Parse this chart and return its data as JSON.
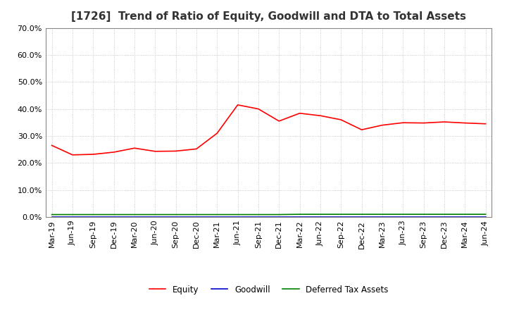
{
  "title": "[1726]  Trend of Ratio of Equity, Goodwill and DTA to Total Assets",
  "x_labels": [
    "Mar-19",
    "Jun-19",
    "Sep-19",
    "Dec-19",
    "Mar-20",
    "Jun-20",
    "Sep-20",
    "Dec-20",
    "Mar-21",
    "Jun-21",
    "Sep-21",
    "Dec-21",
    "Mar-22",
    "Jun-22",
    "Sep-22",
    "Dec-22",
    "Mar-23",
    "Jun-23",
    "Sep-23",
    "Dec-23",
    "Mar-24",
    "Jun-24"
  ],
  "equity": [
    0.265,
    0.23,
    0.232,
    0.24,
    0.255,
    0.243,
    0.244,
    0.252,
    0.31,
    0.415,
    0.4,
    0.355,
    0.384,
    0.375,
    0.36,
    0.323,
    0.34,
    0.349,
    0.348,
    0.352,
    0.348,
    0.345
  ],
  "goodwill": [
    0.001,
    0.001,
    0.001,
    0.001,
    0.001,
    0.001,
    0.001,
    0.001,
    0.001,
    0.001,
    0.001,
    0.001,
    0.001,
    0.001,
    0.001,
    0.001,
    0.001,
    0.001,
    0.001,
    0.001,
    0.001,
    0.001
  ],
  "dta": [
    0.009,
    0.009,
    0.009,
    0.009,
    0.009,
    0.009,
    0.009,
    0.009,
    0.009,
    0.009,
    0.009,
    0.009,
    0.01,
    0.01,
    0.01,
    0.01,
    0.01,
    0.01,
    0.01,
    0.01,
    0.01,
    0.01
  ],
  "equity_color": "#FF0000",
  "goodwill_color": "#0000CC",
  "dta_color": "#008000",
  "ylim": [
    0.0,
    0.7
  ],
  "yticks": [
    0.0,
    0.1,
    0.2,
    0.3,
    0.4,
    0.5,
    0.6,
    0.7
  ],
  "bg_color": "#FFFFFF",
  "plot_bg_color": "#FFFFFF",
  "grid_color": "#BBBBBB",
  "title_fontsize": 11,
  "tick_fontsize": 8,
  "legend_labels": [
    "Equity",
    "Goodwill",
    "Deferred Tax Assets"
  ]
}
